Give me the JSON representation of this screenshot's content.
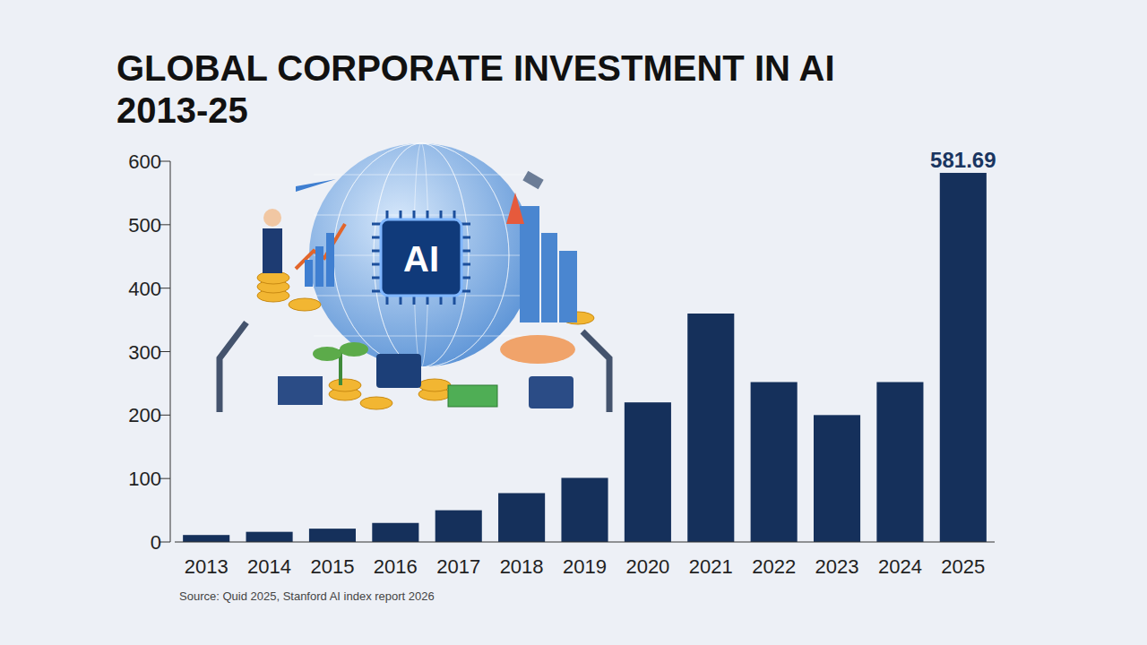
{
  "chart_data": {
    "type": "bar",
    "title": "GLOBAL CORPORATE INVESTMENT IN AI 2013-25",
    "categories": [
      "2013",
      "2014",
      "2015",
      "2016",
      "2017",
      "2018",
      "2019",
      "2020",
      "2021",
      "2022",
      "2023",
      "2024",
      "2025"
    ],
    "values": [
      11,
      16,
      21,
      30,
      50,
      77,
      101,
      220,
      360,
      252,
      200,
      252,
      581.69
    ],
    "value_labels": [
      null,
      null,
      null,
      null,
      null,
      null,
      null,
      null,
      null,
      null,
      null,
      null,
      "581.69"
    ],
    "data_labels": true,
    "color": "#15305b",
    "ylim": [
      0,
      600
    ],
    "yticks": [
      0,
      100,
      200,
      300,
      400,
      500,
      600
    ],
    "grid": false,
    "annotations": [
      "AI"
    ],
    "source": "Source: Quid 2025, Stanford AI index report 2026"
  }
}
